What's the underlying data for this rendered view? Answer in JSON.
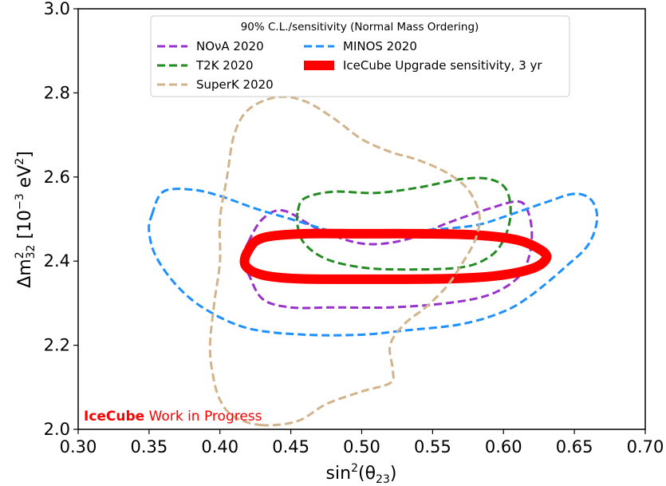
{
  "chart_data": {
    "type": "line",
    "title": "",
    "xlabel_base": "sin",
    "xlabel_sup": "2",
    "xlabel_rest": "(θ",
    "xlabel_sub": "23",
    "xlabel_close": ")",
    "ylabel_prefix": "Δm",
    "ylabel_sup": "2",
    "ylabel_sub": "32",
    "ylabel_units_a": " [10",
    "ylabel_units_exp": "−3",
    "ylabel_units_b": " eV",
    "ylabel_units_exp2": "2",
    "ylabel_units_c": "]",
    "xlim": [
      0.3,
      0.7
    ],
    "ylim": [
      2.0,
      3.0
    ],
    "xticks": [
      "0.30",
      "0.35",
      "0.40",
      "0.45",
      "0.50",
      "0.55",
      "0.60",
      "0.65",
      "0.70"
    ],
    "yticks": [
      "2.0",
      "2.2",
      "2.4",
      "2.6",
      "2.8",
      "3.0"
    ],
    "grid": false,
    "legend": {
      "title": "90% C.L./sensitivity (Normal Mass Ordering)",
      "placement": "top-center",
      "entries": [
        "NOνA 2020",
        "MINOS 2020",
        "T2K 2020",
        "IceCube Upgrade sensitivity, 3 yr",
        "SuperK 2020"
      ]
    },
    "annotation": {
      "bold": "IceCube",
      "rest": " Work in Progress",
      "color": "#ff0000"
    },
    "series": [
      {
        "name": "NOνA 2020",
        "color": "#9932cc",
        "style": "dashed",
        "points": [
          [
            0.42,
            2.445
          ],
          [
            0.43,
            2.5
          ],
          [
            0.445,
            2.52
          ],
          [
            0.47,
            2.475
          ],
          [
            0.5,
            2.442
          ],
          [
            0.53,
            2.45
          ],
          [
            0.56,
            2.49
          ],
          [
            0.59,
            2.525
          ],
          [
            0.61,
            2.542
          ],
          [
            0.617,
            2.52
          ],
          [
            0.62,
            2.47
          ],
          [
            0.618,
            2.41
          ],
          [
            0.61,
            2.36
          ],
          [
            0.59,
            2.32
          ],
          [
            0.56,
            2.3
          ],
          [
            0.52,
            2.29
          ],
          [
            0.48,
            2.29
          ],
          [
            0.45,
            2.29
          ],
          [
            0.43,
            2.31
          ],
          [
            0.42,
            2.37
          ],
          [
            0.415,
            2.4
          ],
          [
            0.42,
            2.445
          ]
        ]
      },
      {
        "name": "MINOS 2020",
        "color": "#1e90ff",
        "style": "dashed",
        "points": [
          [
            0.352,
            2.51
          ],
          [
            0.36,
            2.565
          ],
          [
            0.38,
            2.57
          ],
          [
            0.4,
            2.555
          ],
          [
            0.425,
            2.525
          ],
          [
            0.45,
            2.5
          ],
          [
            0.48,
            2.47
          ],
          [
            0.5,
            2.46
          ],
          [
            0.52,
            2.47
          ],
          [
            0.55,
            2.475
          ],
          [
            0.58,
            2.485
          ],
          [
            0.6,
            2.505
          ],
          [
            0.63,
            2.54
          ],
          [
            0.65,
            2.56
          ],
          [
            0.662,
            2.545
          ],
          [
            0.666,
            2.5
          ],
          [
            0.66,
            2.44
          ],
          [
            0.645,
            2.39
          ],
          [
            0.62,
            2.32
          ],
          [
            0.6,
            2.28
          ],
          [
            0.57,
            2.25
          ],
          [
            0.53,
            2.235
          ],
          [
            0.5,
            2.225
          ],
          [
            0.46,
            2.225
          ],
          [
            0.42,
            2.24
          ],
          [
            0.39,
            2.285
          ],
          [
            0.37,
            2.34
          ],
          [
            0.355,
            2.41
          ],
          [
            0.35,
            2.47
          ],
          [
            0.352,
            2.51
          ]
        ]
      },
      {
        "name": "T2K 2020",
        "color": "#228b22",
        "style": "dashed",
        "points": [
          [
            0.455,
            2.52
          ],
          [
            0.46,
            2.55
          ],
          [
            0.48,
            2.565
          ],
          [
            0.51,
            2.562
          ],
          [
            0.54,
            2.575
          ],
          [
            0.57,
            2.595
          ],
          [
            0.59,
            2.595
          ],
          [
            0.602,
            2.57
          ],
          [
            0.605,
            2.51
          ],
          [
            0.6,
            2.45
          ],
          [
            0.59,
            2.41
          ],
          [
            0.57,
            2.385
          ],
          [
            0.53,
            2.38
          ],
          [
            0.5,
            2.385
          ],
          [
            0.475,
            2.405
          ],
          [
            0.46,
            2.44
          ],
          [
            0.455,
            2.48
          ],
          [
            0.455,
            2.52
          ]
        ]
      },
      {
        "name": "IceCube Upgrade sensitivity, 3 yr",
        "color": "#ff0000",
        "style": "solid",
        "points": [
          [
            0.42,
            2.425
          ],
          [
            0.43,
            2.455
          ],
          [
            0.46,
            2.465
          ],
          [
            0.5,
            2.465
          ],
          [
            0.54,
            2.465
          ],
          [
            0.58,
            2.462
          ],
          [
            0.61,
            2.45
          ],
          [
            0.627,
            2.425
          ],
          [
            0.63,
            2.405
          ],
          [
            0.62,
            2.382
          ],
          [
            0.595,
            2.365
          ],
          [
            0.56,
            2.358
          ],
          [
            0.5,
            2.357
          ],
          [
            0.455,
            2.358
          ],
          [
            0.43,
            2.367
          ],
          [
            0.418,
            2.39
          ],
          [
            0.42,
            2.425
          ]
        ]
      },
      {
        "name": "SuperK 2020",
        "color": "#d2b48c",
        "style": "dashed",
        "points": [
          [
            0.43,
            2.01
          ],
          [
            0.41,
            2.03
          ],
          [
            0.4,
            2.07
          ],
          [
            0.395,
            2.13
          ],
          [
            0.393,
            2.2
          ],
          [
            0.396,
            2.3
          ],
          [
            0.4,
            2.4
          ],
          [
            0.4,
            2.5
          ],
          [
            0.405,
            2.6
          ],
          [
            0.41,
            2.7
          ],
          [
            0.42,
            2.76
          ],
          [
            0.44,
            2.79
          ],
          [
            0.46,
            2.78
          ],
          [
            0.48,
            2.74
          ],
          [
            0.5,
            2.69
          ],
          [
            0.52,
            2.66
          ],
          [
            0.54,
            2.64
          ],
          [
            0.56,
            2.61
          ],
          [
            0.575,
            2.57
          ],
          [
            0.583,
            2.51
          ],
          [
            0.58,
            2.45
          ],
          [
            0.57,
            2.39
          ],
          [
            0.56,
            2.34
          ],
          [
            0.545,
            2.29
          ],
          [
            0.53,
            2.25
          ],
          [
            0.52,
            2.2
          ],
          [
            0.522,
            2.14
          ],
          [
            0.52,
            2.11
          ],
          [
            0.5,
            2.09
          ],
          [
            0.475,
            2.06
          ],
          [
            0.455,
            2.02
          ],
          [
            0.43,
            2.01
          ]
        ]
      }
    ]
  }
}
